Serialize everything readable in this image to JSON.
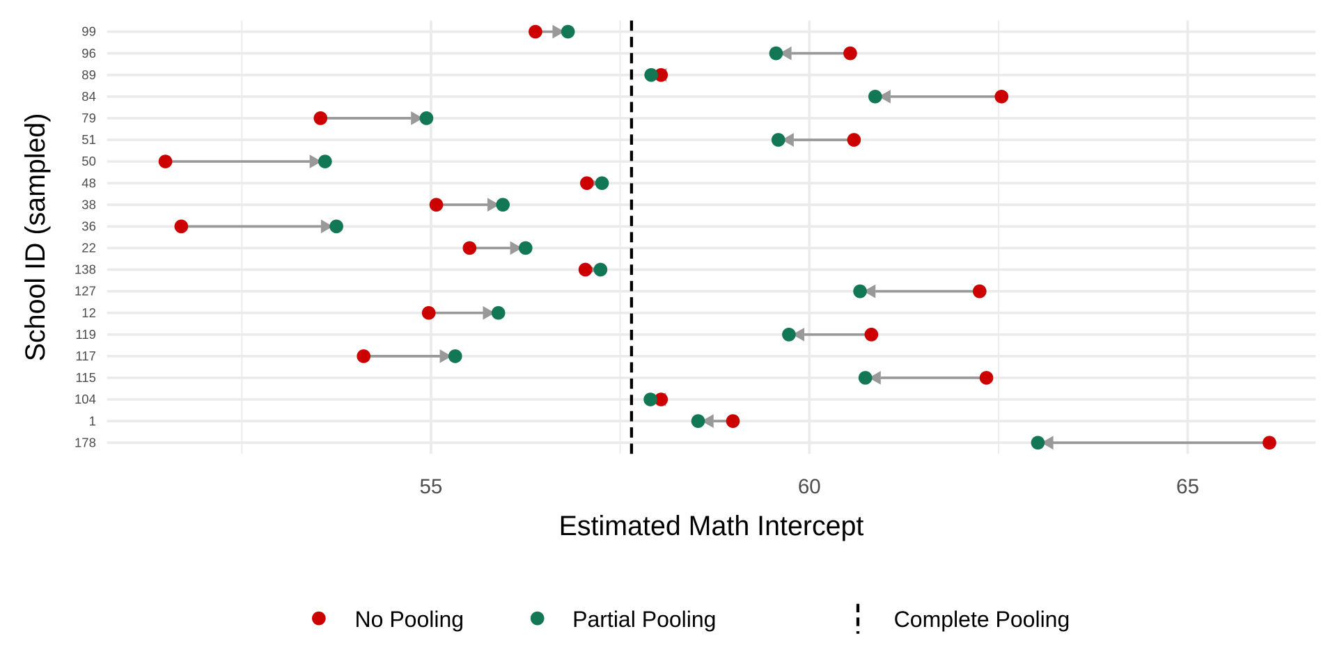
{
  "chart_data": {
    "type": "dumbbell",
    "xlabel": "Estimated Math Intercept",
    "ylabel": "School ID (sampled)",
    "xlim": [
      50.72,
      66.69
    ],
    "x_ticks": [
      55,
      60,
      65
    ],
    "x_minor_ticks": [
      52.5,
      57.5,
      62.5
    ],
    "grid": true,
    "complete_pooling": 57.65,
    "colors": {
      "no_pooling": "#CC0000",
      "partial_pooling": "#117755",
      "arrow": "#999999",
      "complete": "#000000"
    },
    "legend": {
      "position": "bottom",
      "entries": [
        "No Pooling",
        "Partial Pooling",
        "Complete Pooling"
      ]
    },
    "schools": [
      {
        "id": "99",
        "no_pooling": 56.38,
        "partial_pooling": 56.81
      },
      {
        "id": "96",
        "no_pooling": 60.54,
        "partial_pooling": 59.56
      },
      {
        "id": "89",
        "no_pooling": 58.04,
        "partial_pooling": 57.91
      },
      {
        "id": "84",
        "no_pooling": 62.54,
        "partial_pooling": 60.87
      },
      {
        "id": "79",
        "no_pooling": 53.54,
        "partial_pooling": 54.94
      },
      {
        "id": "51",
        "no_pooling": 60.59,
        "partial_pooling": 59.59
      },
      {
        "id": "50",
        "no_pooling": 51.49,
        "partial_pooling": 53.6
      },
      {
        "id": "48",
        "no_pooling": 57.06,
        "partial_pooling": 57.26
      },
      {
        "id": "38",
        "no_pooling": 55.07,
        "partial_pooling": 55.95
      },
      {
        "id": "36",
        "no_pooling": 51.7,
        "partial_pooling": 53.75
      },
      {
        "id": "22",
        "no_pooling": 55.51,
        "partial_pooling": 56.25
      },
      {
        "id": "138",
        "no_pooling": 57.04,
        "partial_pooling": 57.24
      },
      {
        "id": "127",
        "no_pooling": 62.25,
        "partial_pooling": 60.67
      },
      {
        "id": "12",
        "no_pooling": 54.97,
        "partial_pooling": 55.89
      },
      {
        "id": "119",
        "no_pooling": 60.82,
        "partial_pooling": 59.73
      },
      {
        "id": "117",
        "no_pooling": 54.11,
        "partial_pooling": 55.32
      },
      {
        "id": "115",
        "no_pooling": 62.34,
        "partial_pooling": 60.74
      },
      {
        "id": "104",
        "no_pooling": 58.04,
        "partial_pooling": 57.9
      },
      {
        "id": "1",
        "no_pooling": 58.99,
        "partial_pooling": 58.53
      },
      {
        "id": "178",
        "no_pooling": 66.08,
        "partial_pooling": 63.02
      }
    ]
  }
}
